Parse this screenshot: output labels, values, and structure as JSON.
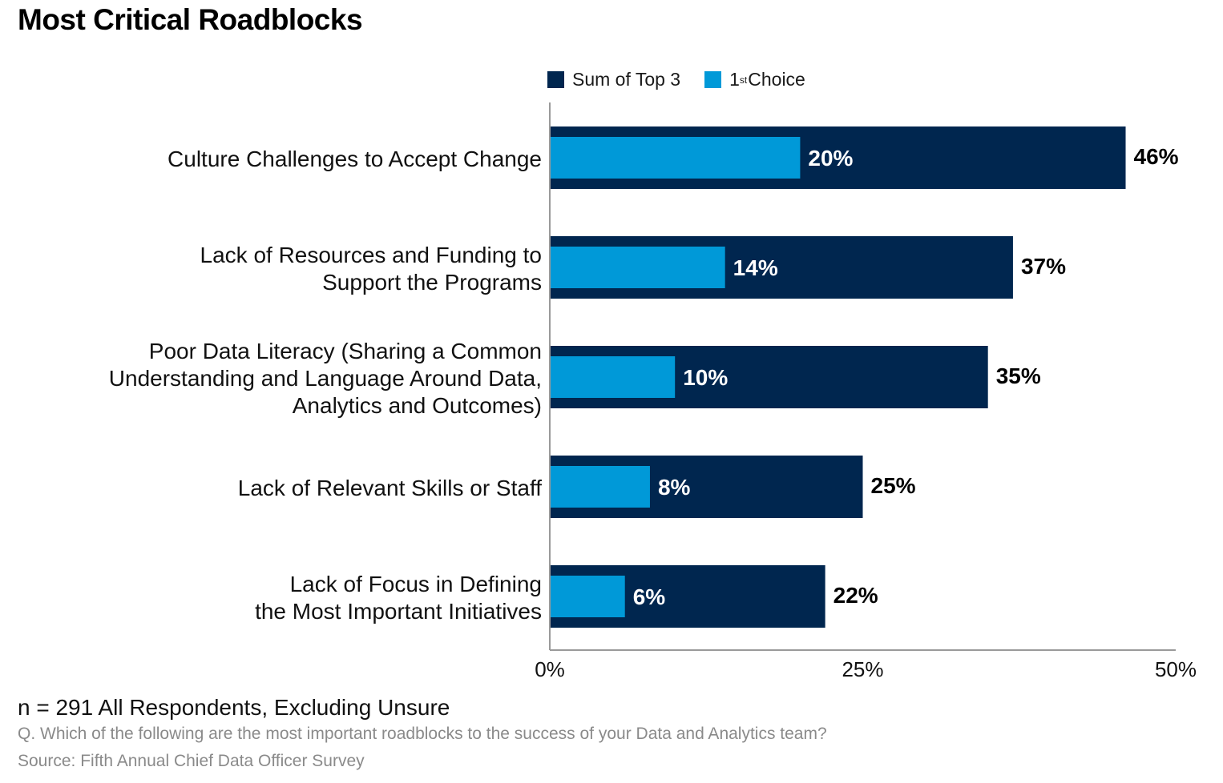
{
  "chart_data": {
    "type": "bar",
    "orientation": "horizontal",
    "title": "Most Critical Roadblocks",
    "categories": [
      "Culture Challenges to Accept Change",
      "Lack of Resources and Funding to\nSupport the Programs",
      "Poor Data Literacy (Sharing a Common\nUnderstanding and Language Around Data,\nAnalytics and Outcomes)",
      "Lack of Relevant Skills or Staff",
      "Lack of Focus in Defining\nthe Most Important Initiatives"
    ],
    "series": [
      {
        "name": "Sum of Top 3",
        "color": "#00264f",
        "values": [
          46,
          37,
          35,
          25,
          22
        ],
        "labels": [
          "46%",
          "37%",
          "35%",
          "25%",
          "22%"
        ]
      },
      {
        "name": "1st Choice",
        "color": "#0099d8",
        "values": [
          20,
          14,
          10,
          8,
          6
        ],
        "labels": [
          "20%",
          "14%",
          "10%",
          "8%",
          "6%"
        ]
      }
    ],
    "xlim": [
      0,
      50
    ],
    "xticks": [
      0,
      25,
      50
    ],
    "xtick_labels": [
      "0%",
      "25%",
      "50%"
    ],
    "legend_position": "top",
    "grid": false
  },
  "legend": {
    "sum_label": "Sum of Top 3",
    "first_ordinal": "1",
    "first_suffix": "st",
    "first_label": "Choice"
  },
  "footer": {
    "n": "n = 291 All Respondents, Excluding Unsure",
    "question": "Q. Which of the following are the most important roadblocks to the success of your Data and Analytics team?",
    "source": "Source: Fifth Annual Chief Data Officer Survey"
  }
}
